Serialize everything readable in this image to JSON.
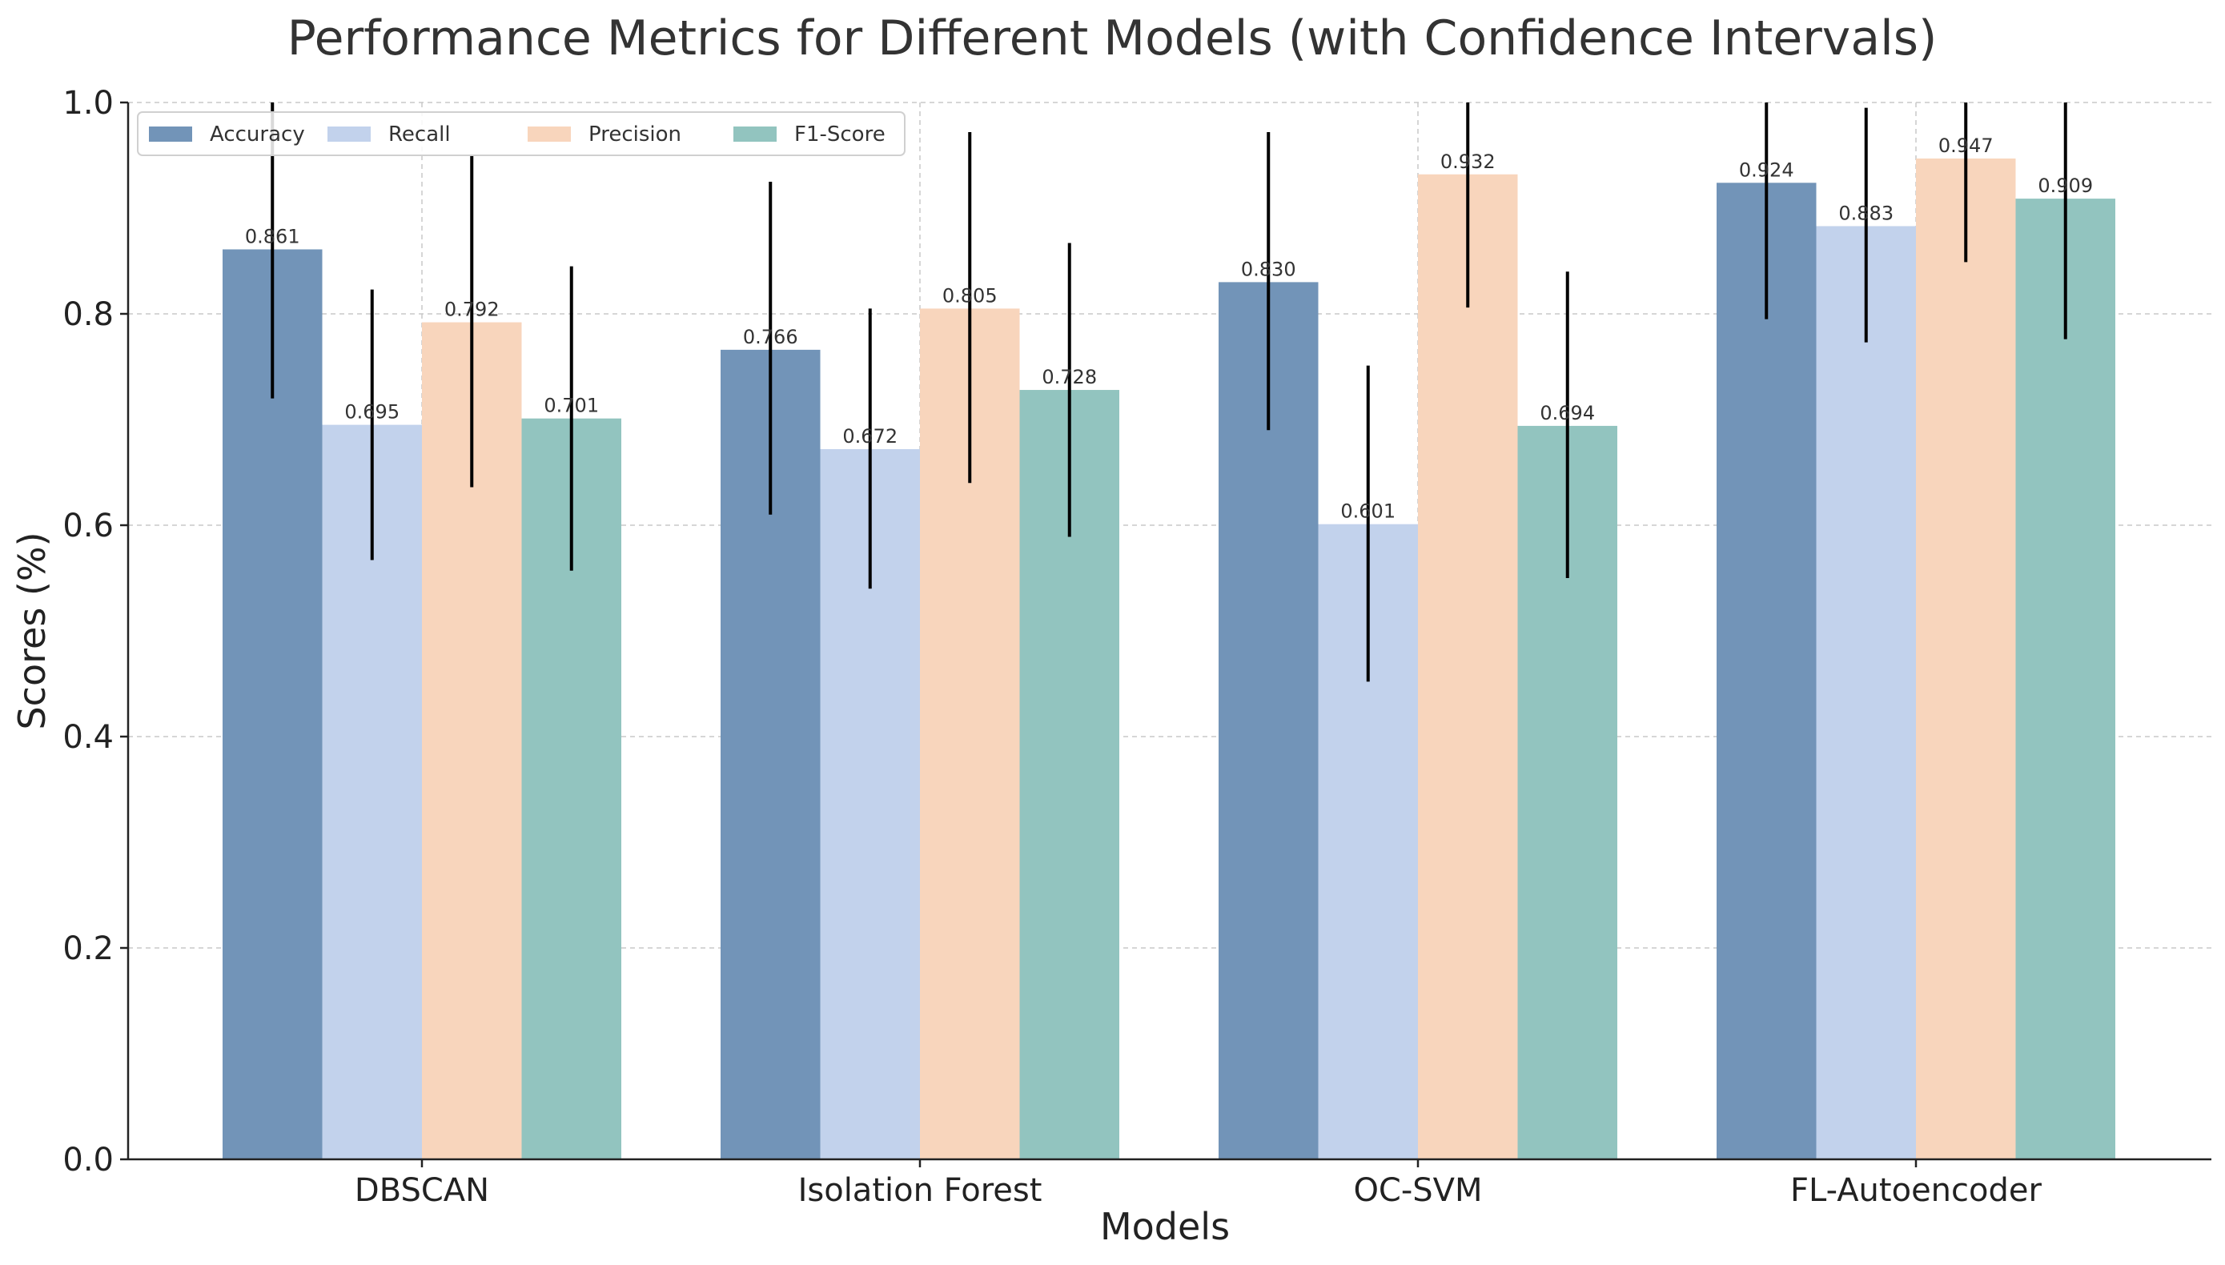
{
  "chart_data": {
    "type": "bar",
    "title": "Performance Metrics for Different Models (with Confidence Intervals)",
    "xlabel": "Models",
    "ylabel": "Scores (%)",
    "ylim": [
      0,
      1.0
    ],
    "yticks": [
      "0.0",
      "0.2",
      "0.4",
      "0.6",
      "0.8",
      "1.0"
    ],
    "grid": true,
    "legend_position": "top-left",
    "categories": [
      "DBSCAN",
      "Isolation Forest",
      "OC-SVM",
      "FL-Autoencoder"
    ],
    "series": [
      {
        "name": "Accuracy",
        "color": "#7294b8",
        "values": [
          0.861,
          0.766,
          0.83,
          0.924
        ],
        "labels": [
          "0.861",
          "0.766",
          "0.830",
          "0.924"
        ],
        "ci_low": [
          0.72,
          0.61,
          0.69,
          0.795
        ],
        "ci_high": [
          1.0,
          0.925,
          0.972,
          1.0
        ]
      },
      {
        "name": "Recall",
        "color": "#c2d2ec",
        "values": [
          0.695,
          0.672,
          0.601,
          0.883
        ],
        "labels": [
          "0.695",
          "0.672",
          "0.601",
          "0.883"
        ],
        "ci_low": [
          0.567,
          0.54,
          0.452,
          0.773
        ],
        "ci_high": [
          0.823,
          0.805,
          0.751,
          0.995
        ]
      },
      {
        "name": "Precision",
        "color": "#f8d5bc",
        "values": [
          0.792,
          0.805,
          0.932,
          0.947
        ],
        "labels": [
          "0.792",
          "0.805",
          "0.932",
          "0.947"
        ],
        "ci_low": [
          0.636,
          0.64,
          0.806,
          0.849
        ],
        "ci_high": [
          0.95,
          0.972,
          1.0,
          1.0
        ]
      },
      {
        "name": "F1-Score",
        "color": "#92c4bf",
        "values": [
          0.701,
          0.728,
          0.694,
          0.909
        ],
        "labels": [
          "0.701",
          "0.728",
          "0.694",
          "0.909"
        ],
        "ci_low": [
          0.557,
          0.589,
          0.55,
          0.776
        ],
        "ci_high": [
          0.845,
          0.867,
          0.84,
          1.0
        ]
      }
    ]
  }
}
